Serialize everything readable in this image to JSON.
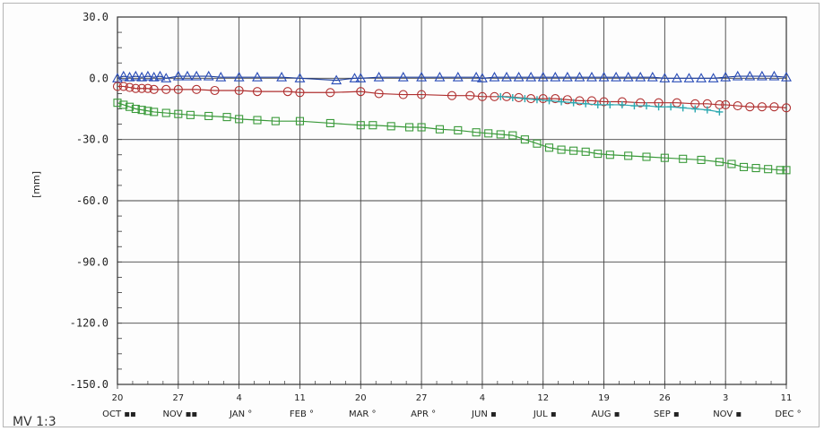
{
  "caption": "MV 1:3",
  "chart_data": {
    "type": "line",
    "ylabel": "[mm]",
    "ylim": [
      -150,
      30
    ],
    "yticks": [
      30,
      0,
      -30,
      -60,
      -90,
      -120,
      -150
    ],
    "ytick_labels": [
      "30.0",
      "0.0",
      "-30.0",
      "-60.0",
      "-90.0",
      "-120.0",
      "-150.0"
    ],
    "xlim": [
      0,
      11
    ],
    "x_ticks": [
      {
        "x": 0,
        "day": "20",
        "month": "OCT",
        "mark": "▪▪"
      },
      {
        "x": 1,
        "day": "27",
        "month": "NOV",
        "mark": "▪▪"
      },
      {
        "x": 2,
        "day": "4",
        "month": "JAN",
        "mark": "°"
      },
      {
        "x": 3,
        "day": "11",
        "month": "FEB",
        "mark": "°"
      },
      {
        "x": 4,
        "day": "20",
        "month": "MAR",
        "mark": "°"
      },
      {
        "x": 5,
        "day": "27",
        "month": "APR",
        "mark": "°"
      },
      {
        "x": 6,
        "day": "4",
        "month": "JUN",
        "mark": "▪"
      },
      {
        "x": 7,
        "day": "12",
        "month": "JUL",
        "mark": "▪"
      },
      {
        "x": 8,
        "day": "19",
        "month": "AUG",
        "mark": "▪"
      },
      {
        "x": 9,
        "day": "26",
        "month": "SEP",
        "mark": "▪"
      },
      {
        "x": 10,
        "day": "3",
        "month": "NOV",
        "mark": "▪"
      },
      {
        "x": 11,
        "day": "11",
        "month": "DEC",
        "mark": "°"
      }
    ],
    "grid": true,
    "series": [
      {
        "marker": "triangle",
        "color": "#1f3f9a",
        "marker_color": "#2a4db8",
        "x": [
          0,
          0.1,
          0.2,
          0.3,
          0.4,
          0.5,
          0.6,
          0.7,
          0.8,
          1.0,
          1.15,
          1.3,
          1.5,
          1.7,
          2.0,
          2.3,
          2.7,
          3.0,
          3.6,
          3.9,
          4.0,
          4.3,
          4.7,
          5.0,
          5.3,
          5.6,
          5.9,
          6.0,
          6.2,
          6.4,
          6.6,
          6.8,
          7.0,
          7.2,
          7.4,
          7.6,
          7.8,
          8.0,
          8.2,
          8.4,
          8.6,
          8.8,
          9.0,
          9.2,
          9.4,
          9.6,
          9.8,
          10.0,
          10.2,
          10.4,
          10.6,
          10.8,
          11.0
        ],
        "y": [
          0,
          1,
          0.5,
          1,
          0.5,
          1,
          0.5,
          1,
          0,
          1,
          1,
          1,
          1,
          0.5,
          0.5,
          0.5,
          0.5,
          0,
          -1,
          0,
          0,
          0.5,
          0.5,
          0.5,
          0.5,
          0.5,
          0.5,
          0,
          0.5,
          0.5,
          0.5,
          0.5,
          0.5,
          0.5,
          0.5,
          0.5,
          0.5,
          0.5,
          0.5,
          0.5,
          0.5,
          0.5,
          0,
          0,
          0,
          0,
          0,
          0.5,
          1,
          1,
          1,
          1,
          0.5
        ]
      },
      {
        "marker": "circle",
        "color": "#b03030",
        "marker_color": "#b03030",
        "x": [
          0,
          0.1,
          0.2,
          0.3,
          0.4,
          0.5,
          0.6,
          0.8,
          1.0,
          1.3,
          1.6,
          2.0,
          2.3,
          2.8,
          3.0,
          3.5,
          4.0,
          4.3,
          4.7,
          5.0,
          5.5,
          5.8,
          6.0,
          6.2,
          6.4,
          6.6,
          6.8,
          7.0,
          7.2,
          7.4,
          7.6,
          7.8,
          8.0,
          8.3,
          8.6,
          8.9,
          9.2,
          9.5,
          9.7,
          9.9,
          10.0,
          10.2,
          10.4,
          10.6,
          10.8,
          11.0
        ],
        "y": [
          -4,
          -4,
          -4.5,
          -5,
          -5,
          -5,
          -5.5,
          -5.5,
          -5.5,
          -5.5,
          -6,
          -6,
          -6.5,
          -6.5,
          -7,
          -7,
          -6.5,
          -7.5,
          -8,
          -8,
          -8.5,
          -8.5,
          -9,
          -9,
          -9,
          -9.5,
          -10,
          -10,
          -10,
          -10.5,
          -11,
          -11,
          -11.5,
          -11.5,
          -12,
          -12,
          -12,
          -12.5,
          -12.5,
          -13,
          -13,
          -13.5,
          -14,
          -14,
          -14,
          -14.5
        ]
      },
      {
        "marker": "plus",
        "color": "#2aa8b0",
        "marker_color": "#2aa8b0",
        "x": [
          6.3,
          6.5,
          6.7,
          6.9,
          7.1,
          7.3,
          7.5,
          7.7,
          7.9,
          8.1,
          8.3,
          8.5,
          8.7,
          8.9,
          9.1,
          9.3,
          9.5,
          9.7,
          9.9
        ],
        "y": [
          -9,
          -9.5,
          -10,
          -10.5,
          -11,
          -11.5,
          -12,
          -12.5,
          -13,
          -13,
          -13,
          -13.5,
          -13.5,
          -14,
          -14,
          -14.5,
          -15,
          -15.5,
          -16.5
        ]
      },
      {
        "marker": "square",
        "color": "#3a9a3a",
        "marker_color": "#3a9a3a",
        "x": [
          0,
          0.1,
          0.2,
          0.3,
          0.4,
          0.5,
          0.6,
          0.8,
          1.0,
          1.2,
          1.5,
          1.8,
          2.0,
          2.3,
          2.6,
          3.0,
          3.5,
          4.0,
          4.2,
          4.5,
          4.8,
          5.0,
          5.3,
          5.6,
          5.9,
          6.1,
          6.3,
          6.5,
          6.7,
          6.9,
          7.1,
          7.3,
          7.5,
          7.7,
          7.9,
          8.1,
          8.4,
          8.7,
          9.0,
          9.3,
          9.6,
          9.9,
          10.1,
          10.3,
          10.5,
          10.7,
          10.9,
          11.0
        ],
        "y": [
          -12,
          -13,
          -14,
          -15,
          -15.5,
          -16,
          -16.5,
          -17,
          -17.5,
          -18,
          -18.5,
          -19,
          -20,
          -20.5,
          -21,
          -21,
          -22,
          -23,
          -23,
          -23.5,
          -24,
          -24,
          -25,
          -25.5,
          -26.5,
          -27,
          -27.5,
          -28,
          -30,
          -32,
          -34,
          -35,
          -35.5,
          -36,
          -37,
          -37.5,
          -38,
          -38.5,
          -39,
          -39.5,
          -40,
          -41,
          -42,
          -43.5,
          -44,
          -44.5,
          -45,
          -45
        ]
      }
    ]
  }
}
